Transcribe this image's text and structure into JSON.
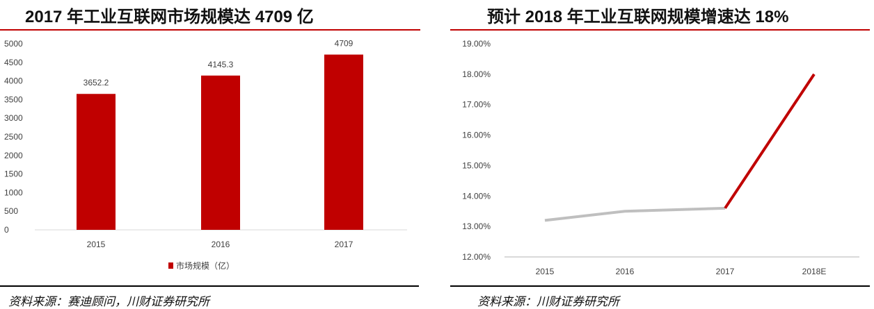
{
  "chart_data": [
    {
      "type": "bar",
      "title": "2017 年工业互联网市场规模达 4709 亿",
      "categories": [
        "2015",
        "2016",
        "2017"
      ],
      "series": [
        {
          "name": "市场规模（亿）",
          "values": [
            3652.2,
            4145.3,
            4709
          ],
          "color": "#c00000"
        }
      ],
      "value_labels": [
        "3652.2",
        "4145.3",
        "4709"
      ],
      "yticks": [
        "0",
        "500",
        "1000",
        "1500",
        "2000",
        "2500",
        "3000",
        "3500",
        "4000",
        "4500",
        "5000"
      ],
      "ylim": [
        0,
        5000
      ],
      "legend": "bottom",
      "source": "资料来源：赛迪顾问，川财证券研究所"
    },
    {
      "type": "line",
      "title": "预计 2018 年工业互联网规模增速达 18%",
      "categories": [
        "2015",
        "2016",
        "2017",
        "2018E"
      ],
      "values": [
        13.2,
        13.5,
        13.6,
        18.0
      ],
      "actual_color": "#bfbfbf",
      "forecast_color": "#c00000",
      "yticks": [
        "12.00%",
        "13.00%",
        "14.00%",
        "15.00%",
        "16.00%",
        "17.00%",
        "18.00%",
        "19.00%"
      ],
      "ylim": [
        12,
        19
      ],
      "source": "资料来源：川财证券研究所"
    }
  ]
}
